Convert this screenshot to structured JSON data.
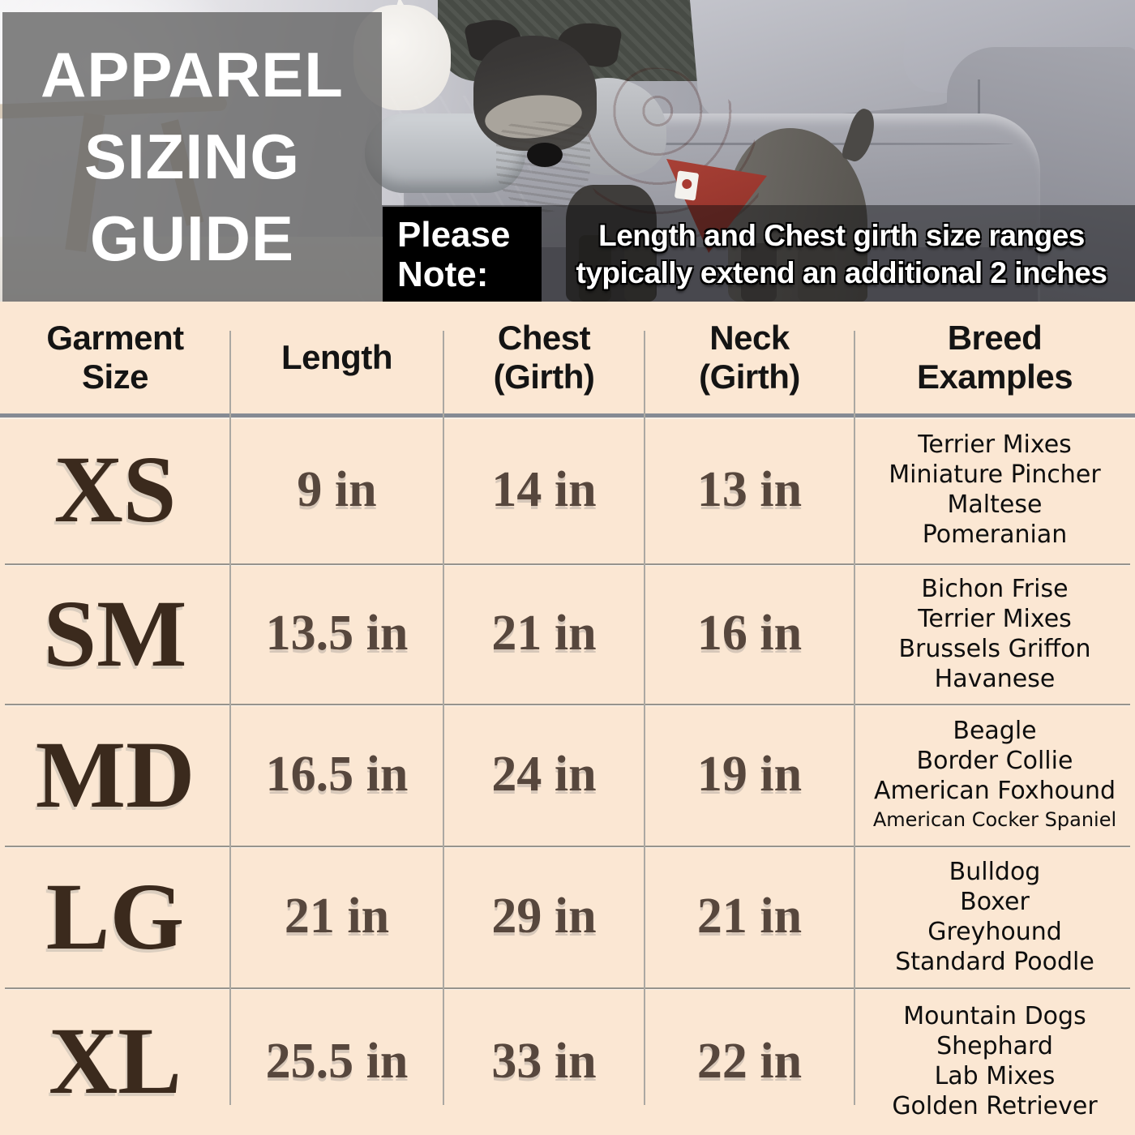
{
  "title": {
    "lines": [
      "APPAREL",
      "SIZING",
      "GUIDE"
    ]
  },
  "note": {
    "label_lines": [
      "Please",
      "Note:"
    ],
    "text_lines": [
      "Length and Chest girth size ranges",
      "typically extend an additional 2 inches"
    ]
  },
  "photo": {
    "alt": "Two dogs wearing winter coats (red quilted vest and black jacket with fur collars) standing in front of a gray couch"
  },
  "colors": {
    "background_peach": "#FBE7D3",
    "title_overlay_gray": "#686868",
    "note_background": "#000000",
    "vest_red": "#B2473C",
    "size_text_brown": "#3B2A1D",
    "value_text_brown": "#57473D",
    "grid_line_gray": "#868B94"
  },
  "table": {
    "columns": [
      {
        "lines": [
          "Garment",
          "Size"
        ]
      },
      {
        "lines": [
          "Length"
        ]
      },
      {
        "lines": [
          "Chest",
          "(Girth)"
        ]
      },
      {
        "lines": [
          "Neck",
          "(Girth)"
        ]
      },
      {
        "lines": [
          "Breed",
          "Examples"
        ]
      }
    ],
    "rows": [
      {
        "size": "XS",
        "length": "9 in",
        "chest": "14 in",
        "neck": "13 in",
        "breeds": [
          "Terrier Mixes",
          "Miniature Pincher",
          "Maltese",
          "Pomeranian"
        ]
      },
      {
        "size": "SM",
        "length": "13.5 in",
        "chest": "21 in",
        "neck": "16 in",
        "breeds": [
          "Bichon Frise",
          "Terrier Mixes",
          "Brussels Griffon",
          "Havanese"
        ]
      },
      {
        "size": "MD",
        "length": "16.5 in",
        "chest": "24 in",
        "neck": "19 in",
        "breeds": [
          "Beagle",
          "Border Collie",
          "American Foxhound",
          "American Cocker Spaniel"
        ]
      },
      {
        "size": "LG",
        "length": "21 in",
        "chest": "29 in",
        "neck": "21 in",
        "breeds": [
          "Bulldog",
          "Boxer",
          "Greyhound",
          "Standard Poodle"
        ]
      },
      {
        "size": "XL",
        "length": "25.5 in",
        "chest": "33 in",
        "neck": "22 in",
        "breeds": [
          "Mountain Dogs",
          "Shephard",
          "Lab Mixes",
          "Golden Retriever"
        ]
      }
    ]
  }
}
